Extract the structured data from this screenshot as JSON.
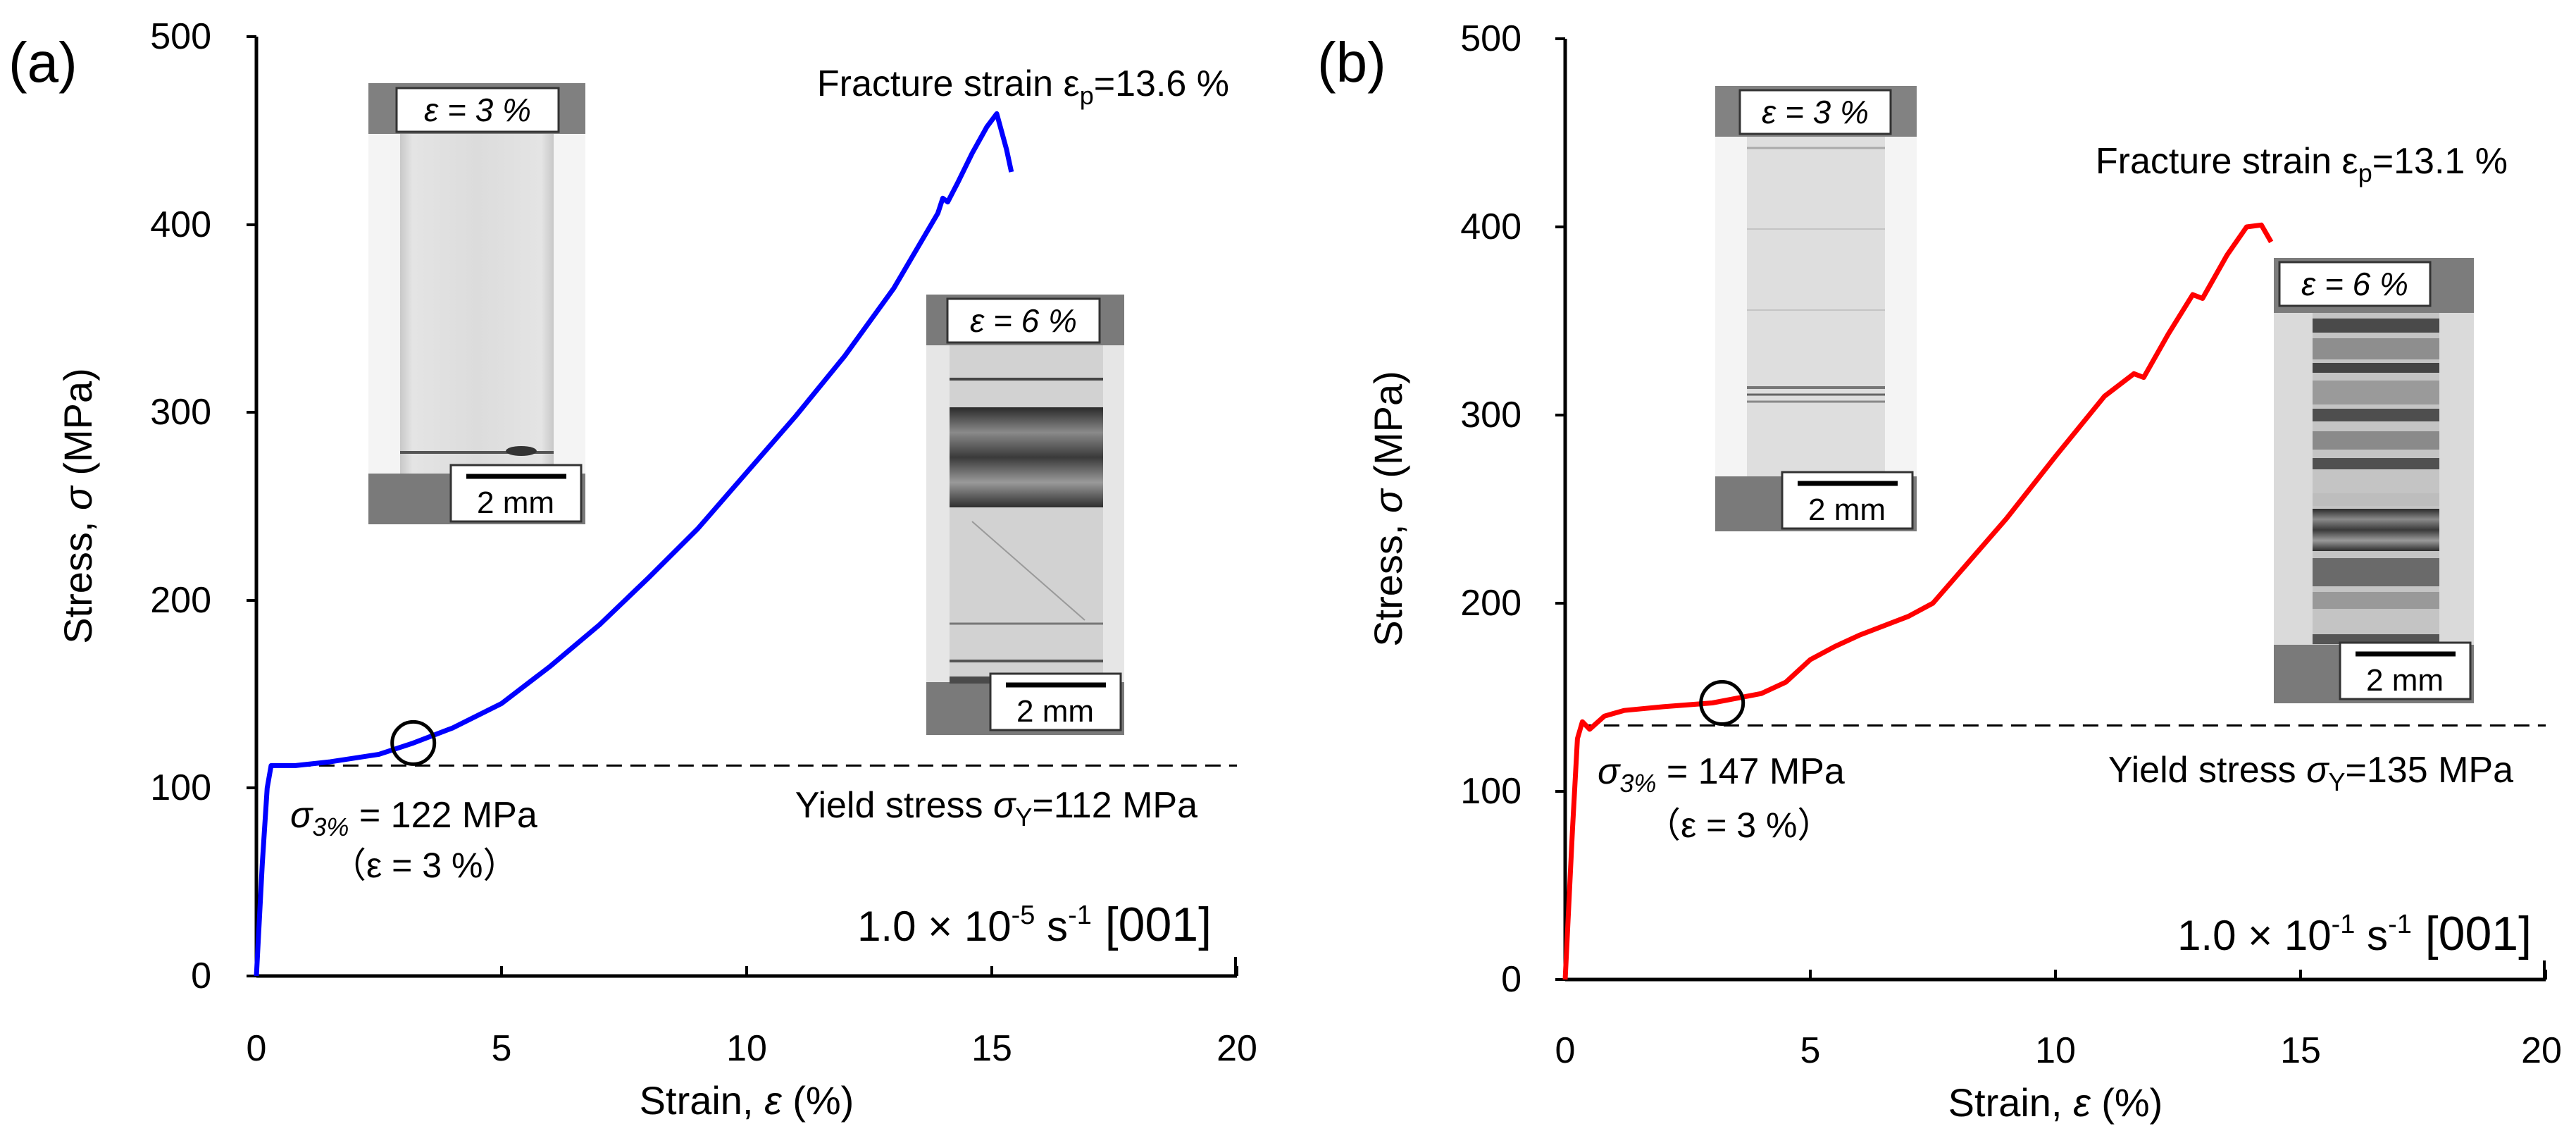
{
  "chart_data": [
    {
      "panel_label": "(a)",
      "type": "line",
      "xlabel_prefix": "Strain, ",
      "xlabel_symbol": "ε",
      "xlabel_suffix": " (%)",
      "ylabel_prefix": "Stress, ",
      "ylabel_symbol": "σ",
      "ylabel_suffix": " (MPa)",
      "xlim": [
        0,
        20
      ],
      "ylim": [
        0,
        500
      ],
      "xticks": [
        "0",
        "5",
        "10",
        "15",
        "20"
      ],
      "yticks": [
        "0",
        "100",
        "200",
        "300",
        "400",
        "500"
      ],
      "series": [
        {
          "name": "1.0×10-5 s-1 [001]",
          "color": "#0000ff",
          "points": [
            [
              0,
              0
            ],
            [
              0.12,
              60
            ],
            [
              0.22,
              100
            ],
            [
              0.3,
              112
            ],
            [
              0.8,
              112
            ],
            [
              1.5,
              114
            ],
            [
              2.5,
              118
            ],
            [
              3.2,
              124
            ],
            [
              4,
              132
            ],
            [
              5,
              145
            ],
            [
              6,
              165
            ],
            [
              7,
              187
            ],
            [
              8,
              212
            ],
            [
              9,
              238
            ],
            [
              10,
              268
            ],
            [
              11,
              298
            ],
            [
              12,
              330
            ],
            [
              13,
              366
            ],
            [
              13.9,
              406
            ],
            [
              14.0,
              414
            ],
            [
              14.1,
              412
            ],
            [
              14.3,
              422
            ],
            [
              14.6,
              438
            ],
            [
              14.9,
              452
            ],
            [
              15.1,
              459
            ],
            [
              15.3,
              440
            ],
            [
              15.4,
              428
            ]
          ]
        }
      ],
      "yield_line": {
        "value": 112,
        "label_prefix": "Yield stress ",
        "label_symbol": "σ",
        "label_sub": "Y",
        "label_suffix": "=112 MPa"
      },
      "marker_circle": {
        "x": 3.2,
        "y": 124
      },
      "annotation_sigma3": {
        "symbol": "σ",
        "sub": "3%",
        "value_text": " = 122 MPa",
        "strain_text": "（ε = 3 %）"
      },
      "fracture_label": {
        "prefix": "Fracture strain ε",
        "sub": "p",
        "suffix": "=13.6 %"
      },
      "rate_label": {
        "base": "1.0 × 10",
        "exp1": "-5",
        "mid": " s",
        "exp2": "-1",
        "orient": " [001]"
      },
      "inset_low": {
        "strain_label": "ε = 3 %",
        "scale_label": "2 mm"
      },
      "inset_high": {
        "strain_label": "ε = 6 %",
        "scale_label": "2 mm"
      }
    },
    {
      "panel_label": "(b)",
      "type": "line",
      "xlabel_prefix": "Strain, ",
      "xlabel_symbol": "ε",
      "xlabel_suffix": " (%)",
      "ylabel_prefix": "Stress, ",
      "ylabel_symbol": "σ",
      "ylabel_suffix": " (MPa)",
      "xlim": [
        0,
        20
      ],
      "ylim": [
        0,
        500
      ],
      "xticks": [
        "0",
        "5",
        "10",
        "15",
        "20"
      ],
      "yticks": [
        "0",
        "100",
        "200",
        "300",
        "400",
        "500"
      ],
      "series": [
        {
          "name": "1.0×10-1 s-1 [001]",
          "color": "#ff0000",
          "points": [
            [
              0,
              0
            ],
            [
              0.15,
              80
            ],
            [
              0.25,
              128
            ],
            [
              0.35,
              137
            ],
            [
              0.5,
              133
            ],
            [
              0.8,
              140
            ],
            [
              1.2,
              143
            ],
            [
              2,
              145
            ],
            [
              3,
              147
            ],
            [
              4,
              152
            ],
            [
              4.5,
              158
            ],
            [
              5,
              170
            ],
            [
              5.5,
              177
            ],
            [
              6,
              183
            ],
            [
              7,
              193
            ],
            [
              7.5,
              200
            ],
            [
              8,
              215
            ],
            [
              9,
              245
            ],
            [
              10,
              278
            ],
            [
              11,
              310
            ],
            [
              11.6,
              322
            ],
            [
              11.8,
              320
            ],
            [
              12.3,
              343
            ],
            [
              12.8,
              364
            ],
            [
              13.0,
              362
            ],
            [
              13.5,
              385
            ],
            [
              13.9,
              400
            ],
            [
              14.2,
              401
            ],
            [
              14.4,
              392
            ]
          ]
        }
      ],
      "yield_line": {
        "value": 135,
        "label_prefix": "Yield stress ",
        "label_symbol": "σ",
        "label_sub": "Y",
        "label_suffix": "=135 MPa"
      },
      "marker_circle": {
        "x": 3.2,
        "y": 147
      },
      "annotation_sigma3": {
        "symbol": "σ",
        "sub": "3%",
        "value_text": " = 147 MPa",
        "strain_text": "（ε = 3 %）"
      },
      "fracture_label": {
        "prefix": "Fracture strain ε",
        "sub": "p",
        "suffix": "=13.1 %"
      },
      "rate_label": {
        "base": "1.0 × 10",
        "exp1": "-1",
        "mid": " s",
        "exp2": "-1",
        "orient": " [001]"
      },
      "inset_low": {
        "strain_label": "ε = 3 %",
        "scale_label": "2 mm"
      },
      "inset_high": {
        "strain_label": "ε = 6 %",
        "scale_label": "2 mm"
      }
    }
  ]
}
